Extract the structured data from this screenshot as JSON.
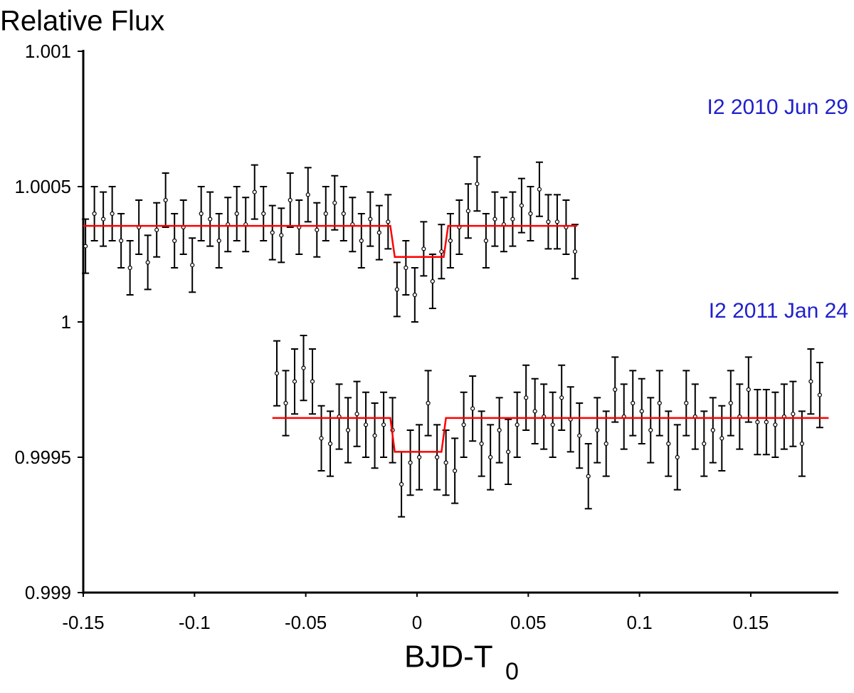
{
  "chart_data": {
    "type": "errorbar",
    "title": "Relative Flux",
    "xlabel": {
      "text": "BJD-T",
      "subscript": "0"
    },
    "xlim": [
      -0.15,
      0.19
    ],
    "xticks": [
      -0.15,
      -0.1,
      -0.05,
      0,
      0.05,
      0.1,
      0.15
    ],
    "ylim": [
      0.999,
      1.001
    ],
    "yticks": [
      0.999,
      0.9995,
      1,
      1.0005,
      1.001
    ],
    "marker_color": "#000000",
    "model_color": "#ff0000",
    "label_color": "#2020cc",
    "series": [
      {
        "name": "I2 2010 Jun 29",
        "error": 0.0001,
        "x": [
          -0.149,
          -0.145,
          -0.141,
          -0.137,
          -0.133,
          -0.129,
          -0.125,
          -0.121,
          -0.117,
          -0.113,
          -0.109,
          -0.105,
          -0.101,
          -0.097,
          -0.093,
          -0.089,
          -0.085,
          -0.081,
          -0.077,
          -0.073,
          -0.069,
          -0.065,
          -0.061,
          -0.057,
          -0.053,
          -0.049,
          -0.045,
          -0.041,
          -0.037,
          -0.033,
          -0.029,
          -0.025,
          -0.021,
          -0.017,
          -0.013,
          -0.009,
          -0.005,
          -0.001,
          0.003,
          0.007,
          0.011,
          0.015,
          0.019,
          0.023,
          0.027,
          0.031,
          0.035,
          0.039,
          0.043,
          0.047,
          0.051,
          0.055,
          0.059,
          0.063,
          0.067,
          0.071
        ],
        "values": [
          1.00028,
          1.0004,
          1.00038,
          1.0004,
          1.0003,
          1.0002,
          1.00035,
          1.00022,
          1.00034,
          1.00045,
          1.0003,
          1.00035,
          1.00021,
          1.0004,
          1.00038,
          1.0003,
          1.00036,
          1.0004,
          1.00036,
          1.00048,
          1.0004,
          1.00033,
          1.00032,
          1.00045,
          1.00035,
          1.00047,
          1.00034,
          1.0004,
          1.00044,
          1.0004,
          1.00036,
          1.0003,
          1.00038,
          1.00033,
          1.00037,
          1.00012,
          1.0002,
          1.0001,
          1.00027,
          1.00015,
          1.00026,
          1.0003,
          1.00035,
          1.00041,
          1.00051,
          1.0003,
          1.00038,
          1.00036,
          1.00038,
          1.00043,
          1.0004,
          1.00049,
          1.00037,
          1.00037,
          1.00035,
          1.00026
        ],
        "model": {
          "x": [
            -0.15,
            -0.012,
            -0.01,
            0.012,
            0.014,
            0.072
          ],
          "values": [
            1.000355,
            1.000355,
            1.00024,
            1.00024,
            1.000355,
            1.000355
          ]
        }
      },
      {
        "name": "I2 2011 Jan 24",
        "error": 0.00012,
        "x": [
          -0.063,
          -0.059,
          -0.055,
          -0.051,
          -0.047,
          -0.043,
          -0.039,
          -0.035,
          -0.031,
          -0.027,
          -0.023,
          -0.019,
          -0.015,
          -0.011,
          -0.007,
          -0.003,
          0.001,
          0.005,
          0.009,
          0.013,
          0.017,
          0.021,
          0.025,
          0.029,
          0.033,
          0.037,
          0.041,
          0.045,
          0.049,
          0.053,
          0.057,
          0.061,
          0.065,
          0.069,
          0.073,
          0.077,
          0.081,
          0.085,
          0.089,
          0.093,
          0.097,
          0.101,
          0.105,
          0.109,
          0.113,
          0.117,
          0.121,
          0.125,
          0.129,
          0.133,
          0.137,
          0.141,
          0.145,
          0.149,
          0.153,
          0.157,
          0.161,
          0.165,
          0.169,
          0.173,
          0.177,
          0.181
        ],
        "values": [
          0.99981,
          0.9997,
          0.99978,
          0.99983,
          0.99978,
          0.99957,
          0.99955,
          0.99965,
          0.9996,
          0.99966,
          0.99962,
          0.99958,
          0.99962,
          0.9996,
          0.9994,
          0.99948,
          0.9995,
          0.9997,
          0.9995,
          0.99948,
          0.99945,
          0.99962,
          0.99968,
          0.99955,
          0.9995,
          0.9996,
          0.99952,
          0.99962,
          0.99972,
          0.99967,
          0.99965,
          0.99962,
          0.99972,
          0.99964,
          0.99958,
          0.99943,
          0.9996,
          0.99955,
          0.99975,
          0.99965,
          0.9997,
          0.99967,
          0.9996,
          0.9997,
          0.99955,
          0.9995,
          0.9997,
          0.99965,
          0.99955,
          0.9996,
          0.99957,
          0.9997,
          0.99965,
          0.99975,
          0.99963,
          0.99963,
          0.99962,
          0.99965,
          0.99966,
          0.99955,
          0.99978,
          0.99973
        ],
        "model": {
          "x": [
            -0.065,
            -0.012,
            -0.01,
            0.011,
            0.013,
            0.185
          ],
          "values": [
            0.999645,
            0.999645,
            0.99952,
            0.99952,
            0.999645,
            0.999645
          ]
        }
      }
    ]
  }
}
